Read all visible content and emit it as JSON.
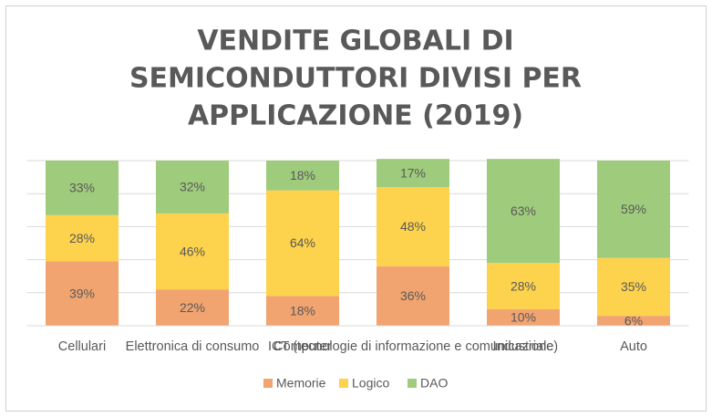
{
  "chart_data": {
    "type": "stacked_bar_percent",
    "title": [
      "VENDITE GLOBALI DI",
      "SEMICONDUTTORI DIVISI PER",
      "APPLICAZIONE (2019)"
    ],
    "categories": [
      "Cellulari",
      "Elettronica di consumo",
      "Computer",
      "ICT (tecnologie di informazione e comunicazione)",
      "Industriale",
      "Auto"
    ],
    "series": [
      {
        "name": "Memorie",
        "color": "#f1a46f",
        "values": [
          39,
          22,
          18,
          36,
          10,
          6
        ],
        "value_labels": [
          "39%",
          "22%",
          "18%",
          "36%",
          "10%",
          "6%"
        ]
      },
      {
        "name": "Logico",
        "color": "#fdd24c",
        "values": [
          28,
          46,
          64,
          48,
          28,
          35
        ],
        "value_labels": [
          "28%",
          "46%",
          "64%",
          "48%",
          "28%",
          "35%"
        ]
      },
      {
        "name": "DAO",
        "color": "#9fcb7c",
        "values": [
          33,
          32,
          18,
          17,
          63,
          59
        ],
        "value_labels": [
          "33%",
          "32%",
          "18%",
          "17%",
          "63%",
          "59%"
        ]
      }
    ],
    "ylim": [
      0,
      100
    ],
    "yticks": [
      0,
      20,
      40,
      60,
      80,
      100
    ],
    "grid": true,
    "legend": "bottom"
  }
}
